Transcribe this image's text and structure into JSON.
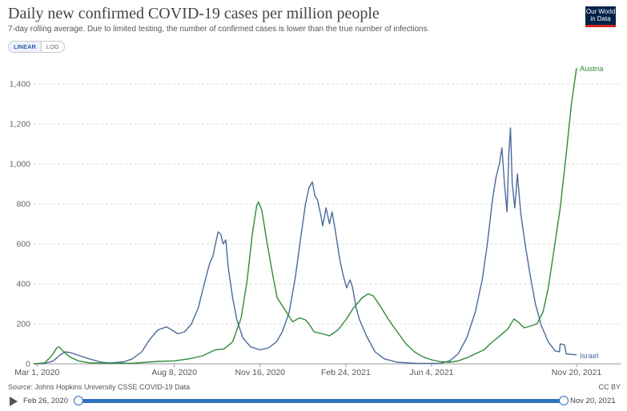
{
  "header": {
    "title": "Daily new confirmed COVID-19 cases per million people",
    "subtitle": "7-day rolling average. Due to limited testing, the number of confirmed cases is lower than the true number of infections.",
    "logo_line1": "Our World",
    "logo_line2": "in Data"
  },
  "controls": {
    "linear_label": "LINEAR",
    "log_label": "LOG",
    "selected": "LINEAR"
  },
  "footer": {
    "source": "Source: Johns Hopkins University CSSE COVID-19 Data",
    "license": "CC BY"
  },
  "timeline": {
    "start_label": "Feb 26, 2020",
    "end_label": "Nov 20, 2021",
    "selected_range_fraction": [
      0.0,
      1.0
    ]
  },
  "chart_data": {
    "type": "line",
    "title": "Daily new confirmed COVID-19 cases per million people",
    "subtitle": "7-day rolling average. Due to limited testing, the number of confirmed cases is lower than the true number of infections.",
    "xlabel": "",
    "ylabel": "",
    "x_range": [
      "2020-02-26",
      "2021-11-20"
    ],
    "ylim": [
      0,
      1500
    ],
    "y_ticks": [
      0,
      200,
      400,
      600,
      800,
      1000,
      1200,
      1400
    ],
    "y_tick_labels": [
      "0",
      "200",
      "400",
      "600",
      "800",
      "1,000",
      "1,200",
      "1,400"
    ],
    "x_ticks": [
      "2020-03-01",
      "2020-08-08",
      "2020-11-16",
      "2021-02-24",
      "2021-06-04",
      "2021-11-20"
    ],
    "x_tick_labels": [
      "Mar 1, 2020",
      "Aug 8, 2020",
      "Nov 16, 2020",
      "Feb 24, 2021",
      "Jun 4, 2021",
      "Nov 20, 2021"
    ],
    "grid": "horizontal dashed",
    "scale": "linear",
    "series": [
      {
        "name": "Israel",
        "color": "#4c6a9c",
        "label_position": "end",
        "points": [
          [
            "2020-02-26",
            0
          ],
          [
            "2020-03-10",
            2
          ],
          [
            "2020-03-20",
            15
          ],
          [
            "2020-03-28",
            45
          ],
          [
            "2020-04-03",
            60
          ],
          [
            "2020-04-10",
            55
          ],
          [
            "2020-04-20",
            40
          ],
          [
            "2020-05-01",
            25
          ],
          [
            "2020-05-15",
            8
          ],
          [
            "2020-05-25",
            4
          ],
          [
            "2020-06-10",
            10
          ],
          [
            "2020-06-20",
            25
          ],
          [
            "2020-07-01",
            60
          ],
          [
            "2020-07-10",
            120
          ],
          [
            "2020-07-20",
            170
          ],
          [
            "2020-07-30",
            185
          ],
          [
            "2020-08-05",
            170
          ],
          [
            "2020-08-12",
            150
          ],
          [
            "2020-08-20",
            160
          ],
          [
            "2020-08-28",
            200
          ],
          [
            "2020-09-05",
            280
          ],
          [
            "2020-09-12",
            400
          ],
          [
            "2020-09-18",
            500
          ],
          [
            "2020-09-22",
            540
          ],
          [
            "2020-09-28",
            660
          ],
          [
            "2020-10-01",
            650
          ],
          [
            "2020-10-04",
            600
          ],
          [
            "2020-10-07",
            620
          ],
          [
            "2020-10-10",
            480
          ],
          [
            "2020-10-15",
            330
          ],
          [
            "2020-10-20",
            220
          ],
          [
            "2020-10-27",
            130
          ],
          [
            "2020-11-05",
            85
          ],
          [
            "2020-11-16",
            70
          ],
          [
            "2020-11-26",
            80
          ],
          [
            "2020-12-05",
            110
          ],
          [
            "2020-12-12",
            160
          ],
          [
            "2020-12-20",
            260
          ],
          [
            "2020-12-27",
            430
          ],
          [
            "2021-01-03",
            650
          ],
          [
            "2021-01-08",
            800
          ],
          [
            "2021-01-12",
            880
          ],
          [
            "2021-01-16",
            910
          ],
          [
            "2021-01-19",
            840
          ],
          [
            "2021-01-22",
            820
          ],
          [
            "2021-01-26",
            740
          ],
          [
            "2021-01-28",
            690
          ],
          [
            "2021-02-01",
            780
          ],
          [
            "2021-02-05",
            700
          ],
          [
            "2021-02-08",
            760
          ],
          [
            "2021-02-12",
            660
          ],
          [
            "2021-02-17",
            520
          ],
          [
            "2021-02-21",
            440
          ],
          [
            "2021-02-25",
            380
          ],
          [
            "2021-03-01",
            420
          ],
          [
            "2021-03-04",
            380
          ],
          [
            "2021-03-08",
            280
          ],
          [
            "2021-03-12",
            220
          ],
          [
            "2021-03-20",
            140
          ],
          [
            "2021-03-30",
            60
          ],
          [
            "2021-04-10",
            25
          ],
          [
            "2021-04-25",
            8
          ],
          [
            "2021-05-15",
            3
          ],
          [
            "2021-06-04",
            2
          ],
          [
            "2021-06-15",
            3
          ],
          [
            "2021-06-25",
            15
          ],
          [
            "2021-07-05",
            50
          ],
          [
            "2021-07-15",
            130
          ],
          [
            "2021-07-25",
            260
          ],
          [
            "2021-08-02",
            420
          ],
          [
            "2021-08-08",
            600
          ],
          [
            "2021-08-14",
            820
          ],
          [
            "2021-08-18",
            930
          ],
          [
            "2021-08-22",
            1000
          ],
          [
            "2021-08-25",
            1080
          ],
          [
            "2021-08-28",
            900
          ],
          [
            "2021-08-31",
            760
          ],
          [
            "2021-09-02",
            1050
          ],
          [
            "2021-09-04",
            1180
          ],
          [
            "2021-09-06",
            900
          ],
          [
            "2021-09-09",
            780
          ],
          [
            "2021-09-12",
            950
          ],
          [
            "2021-09-16",
            750
          ],
          [
            "2021-09-21",
            600
          ],
          [
            "2021-09-27",
            440
          ],
          [
            "2021-10-03",
            300
          ],
          [
            "2021-10-10",
            190
          ],
          [
            "2021-10-18",
            110
          ],
          [
            "2021-10-26",
            65
          ],
          [
            "2021-10-31",
            60
          ],
          [
            "2021-11-01",
            100
          ],
          [
            "2021-11-06",
            95
          ],
          [
            "2021-11-08",
            50
          ],
          [
            "2021-11-20",
            45
          ]
        ]
      },
      {
        "name": "Austria",
        "color": "#2e8b3a",
        "label_position": "end",
        "points": [
          [
            "2020-02-26",
            0
          ],
          [
            "2020-03-10",
            5
          ],
          [
            "2020-03-18",
            40
          ],
          [
            "2020-03-24",
            80
          ],
          [
            "2020-03-27",
            85
          ],
          [
            "2020-03-31",
            65
          ],
          [
            "2020-04-08",
            35
          ],
          [
            "2020-04-18",
            15
          ],
          [
            "2020-05-01",
            5
          ],
          [
            "2020-06-01",
            3
          ],
          [
            "2020-06-20",
            3
          ],
          [
            "2020-07-01",
            6
          ],
          [
            "2020-07-20",
            12
          ],
          [
            "2020-08-08",
            15
          ],
          [
            "2020-08-25",
            25
          ],
          [
            "2020-09-10",
            40
          ],
          [
            "2020-09-25",
            70
          ],
          [
            "2020-10-05",
            75
          ],
          [
            "2020-10-15",
            110
          ],
          [
            "2020-10-25",
            230
          ],
          [
            "2020-11-01",
            420
          ],
          [
            "2020-11-07",
            650
          ],
          [
            "2020-11-12",
            790
          ],
          [
            "2020-11-14",
            810
          ],
          [
            "2020-11-18",
            770
          ],
          [
            "2020-11-24",
            610
          ],
          [
            "2020-12-01",
            440
          ],
          [
            "2020-12-06",
            330
          ],
          [
            "2020-12-12",
            290
          ],
          [
            "2020-12-18",
            250
          ],
          [
            "2020-12-24",
            210
          ],
          [
            "2021-01-01",
            230
          ],
          [
            "2021-01-08",
            220
          ],
          [
            "2021-01-12",
            200
          ],
          [
            "2021-01-18",
            160
          ],
          [
            "2021-01-28",
            150
          ],
          [
            "2021-02-05",
            140
          ],
          [
            "2021-02-15",
            170
          ],
          [
            "2021-02-24",
            220
          ],
          [
            "2021-03-05",
            280
          ],
          [
            "2021-03-15",
            330
          ],
          [
            "2021-03-22",
            350
          ],
          [
            "2021-03-28",
            340
          ],
          [
            "2021-04-05",
            290
          ],
          [
            "2021-04-15",
            220
          ],
          [
            "2021-04-25",
            160
          ],
          [
            "2021-05-05",
            100
          ],
          [
            "2021-05-15",
            60
          ],
          [
            "2021-05-25",
            35
          ],
          [
            "2021-06-04",
            20
          ],
          [
            "2021-06-15",
            10
          ],
          [
            "2021-06-25",
            8
          ],
          [
            "2021-07-05",
            15
          ],
          [
            "2021-07-15",
            30
          ],
          [
            "2021-07-25",
            50
          ],
          [
            "2021-08-04",
            70
          ],
          [
            "2021-08-14",
            110
          ],
          [
            "2021-08-24",
            145
          ],
          [
            "2021-09-01",
            175
          ],
          [
            "2021-09-08",
            225
          ],
          [
            "2021-09-14",
            205
          ],
          [
            "2021-09-20",
            180
          ],
          [
            "2021-09-28",
            190
          ],
          [
            "2021-10-05",
            200
          ],
          [
            "2021-10-12",
            260
          ],
          [
            "2021-10-18",
            380
          ],
          [
            "2021-10-25",
            580
          ],
          [
            "2021-11-01",
            780
          ],
          [
            "2021-11-08",
            1050
          ],
          [
            "2021-11-14",
            1300
          ],
          [
            "2021-11-20",
            1480
          ]
        ]
      }
    ]
  }
}
